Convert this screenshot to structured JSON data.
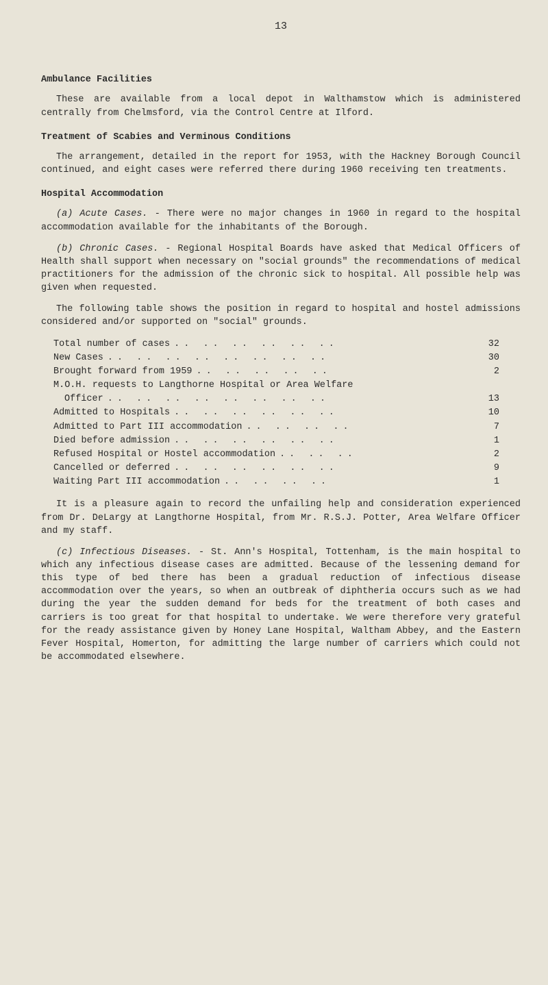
{
  "page_number": "13",
  "sections": {
    "ambulance_heading": "Ambulance Facilities",
    "ambulance_p1": "These are available from a local depot in Walthamstow which is administered centrally from Chelmsford, via the Control Centre at Ilford.",
    "scabies_heading": "Treatment of Scabies and Verminous Conditions",
    "scabies_p1": "The arrangement, detailed in the report for 1953, with the Hackney Borough Council continued, and eight cases were referred there during 1960 receiving ten treatments.",
    "hospital_heading": "Hospital Accommodation",
    "acute_label": "(a) Acute Cases.",
    "acute_text": " - There were no major changes in 1960 in regard to the hospital accommodation available for the inhabit­ants of the Borough.",
    "chronic_label": "(b) Chronic Cases.",
    "chronic_text": " - Regional Hospital Boards have asked that Medical Officers of Health shall support when necessary on \"social grounds\" the recommendations of medical practitioners for the admission of the chronic sick to hospital. All possible help was given when requested.",
    "chronic_p2": "The following table shows the position in regard to hospital and hostel admissions considered and/or supported on \"social\" grounds.",
    "stats": [
      {
        "label": "Total number of cases",
        "value": "32",
        "dots": ".. .. ..  .. .. .."
      },
      {
        "label": "New Cases",
        "value": "30",
        "dots": ".. .. .. ..  .. .. .. .."
      },
      {
        "label": "Brought forward from 1959",
        "value": "2",
        "dots": ".. ..  .. .. .."
      },
      {
        "label": "M.O.H. requests to Langthorne Hospital or Area Welfare",
        "value": "",
        "dots": ""
      },
      {
        "label": "Officer",
        "value": "13",
        "dots": ".. .. .. ..  .. .. .. ..",
        "indent": true
      },
      {
        "label": "Admitted to Hospitals",
        "value": "10",
        "dots": ".. .. ..  .. .. .."
      },
      {
        "label": "Admitted to Part III accommodation",
        "value": "7",
        "dots": "..  .. .. .."
      },
      {
        "label": "Died before admission",
        "value": "1",
        "dots": ".. .. ..  .. .. .."
      },
      {
        "label": "Refused Hospital or Hostel accommodation",
        "value": "2",
        "dots": "..  .. .."
      },
      {
        "label": "Cancelled or deferred",
        "value": "9",
        "dots": ".. .. ..  .. .. .."
      },
      {
        "label": "Waiting Part III accommodation",
        "value": "1",
        "dots": "..  .. .. .."
      }
    ],
    "chronic_p3": "It is a pleasure again to record the unfailing help and con­sideration experienced from Dr. DeLargy at Langthorne Hospital, from Mr. R.S.J. Potter, Area Welfare Officer and my staff.",
    "infectious_label": "(c) Infectious Diseases.",
    "infectious_text": " - St. Ann's Hospital, Tottenham, is the main hospital to which any infectious disease cases are admitted. Because of the lessening demand for this type of bed there has been a gradual reduction of infectious disease accommodation over the years, so when an outbreak of diphtheria occurs such as we had during the year the sudden demand for beds for the treatment of both cases and carriers is too great for that hospital to undertake. We were therefore very grate­ful for the ready assistance given by Honey Lane Hospital, Waltham Abbey, and the Eastern Fever Hospital, Homerton, for admitting the large number of carriers which could not be accommodated elsewhere."
  }
}
